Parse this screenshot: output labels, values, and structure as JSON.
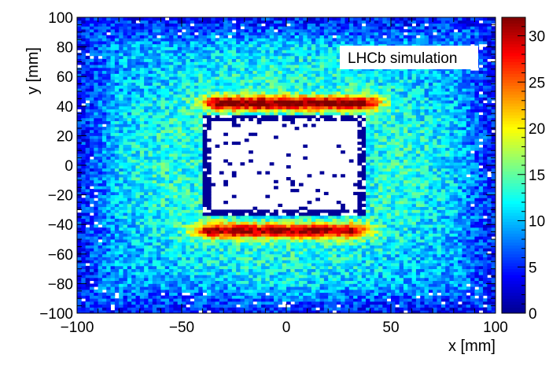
{
  "chart_data": {
    "type": "heatmap",
    "title": "",
    "xlabel": "x [mm]",
    "ylabel": "y [mm]",
    "xlim": [
      -100,
      100
    ],
    "ylim": [
      -100,
      100
    ],
    "bins": {
      "nx": 100,
      "ny": 100
    },
    "x_ticks": [
      "−100",
      "−50",
      "0",
      "50",
      "100"
    ],
    "x_tick_values": [
      -100,
      -50,
      0,
      50,
      100
    ],
    "y_ticks": [
      "−100",
      "−80",
      "−60",
      "−40",
      "−20",
      "0",
      "20",
      "40",
      "60",
      "80",
      "100"
    ],
    "y_tick_values": [
      -100,
      -80,
      -60,
      -40,
      -20,
      0,
      20,
      40,
      60,
      80,
      100
    ],
    "z_range": [
      0,
      32
    ],
    "z_ticks": [
      "0",
      "5",
      "10",
      "15",
      "20",
      "25",
      "30"
    ],
    "z_tick_values": [
      0,
      5,
      10,
      15,
      20,
      25,
      30
    ],
    "colormap": "kBird/jet",
    "colorscale_stops": [
      "#00008f",
      "#0000ff",
      "#0080ff",
      "#00ffff",
      "#80ff80",
      "#ffff00",
      "#ff8000",
      "#ff0000",
      "#800000"
    ],
    "annotation": "LHCb simulation",
    "hole": {
      "x_range": [
        -40,
        38
      ],
      "y_range": [
        -34,
        35
      ],
      "description": "beam-pipe hole region: mostly empty bins with a dark-blue border"
    },
    "bands": [
      {
        "y_center": 42,
        "x_range": [
          -30,
          35
        ],
        "peak_value": 30
      },
      {
        "y_center": -44,
        "x_range": [
          -35,
          30
        ],
        "peak_value": 28
      }
    ],
    "background_level": 9,
    "notes": "Occupancy rises near the horizontal edges of the hole and falls off towards the outer edges of the plot."
  }
}
